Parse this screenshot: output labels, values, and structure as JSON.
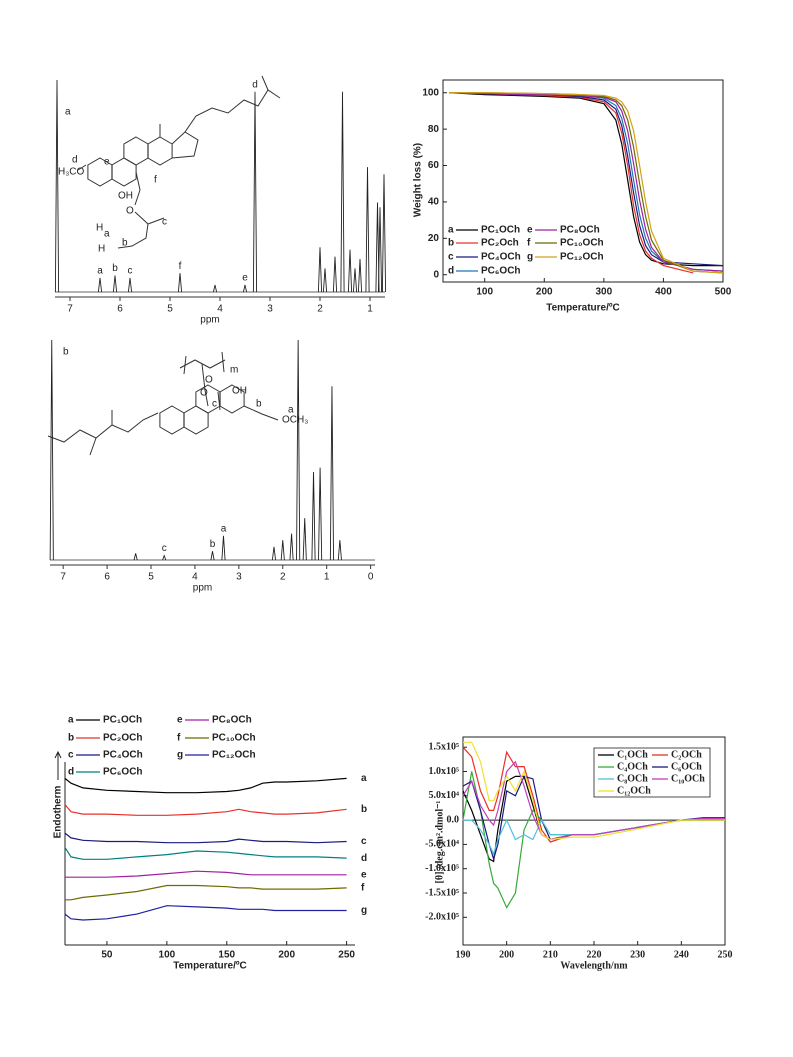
{
  "chart_data": [
    {
      "type": "spectrum",
      "panel_label": "a",
      "x_label": "ppm",
      "xlim": [
        7.3,
        0.7
      ],
      "xticks": [
        7,
        6,
        5,
        4,
        3,
        2,
        1
      ],
      "structure_labels": [
        "d",
        "H₃CO",
        "e",
        "OH",
        "O",
        "c",
        "H",
        "a",
        "H",
        "b",
        "f"
      ],
      "peaks": [
        {
          "x": 7.26,
          "height": 90
        },
        {
          "x": 6.4,
          "height": 6,
          "label": "a"
        },
        {
          "x": 6.1,
          "height": 7,
          "label": "b"
        },
        {
          "x": 5.8,
          "height": 6,
          "label": "c"
        },
        {
          "x": 4.8,
          "height": 8,
          "label": "f"
        },
        {
          "x": 4.1,
          "height": 3
        },
        {
          "x": 3.5,
          "height": 3,
          "label": "e"
        },
        {
          "x": 3.3,
          "height": 85,
          "label": "d"
        },
        {
          "x": 2.0,
          "height": 19
        },
        {
          "x": 1.9,
          "height": 10
        },
        {
          "x": 1.7,
          "height": 15
        },
        {
          "x": 1.55,
          "height": 85
        },
        {
          "x": 1.4,
          "height": 18
        },
        {
          "x": 1.3,
          "height": 10
        },
        {
          "x": 1.2,
          "height": 14
        },
        {
          "x": 1.05,
          "height": 53
        },
        {
          "x": 0.85,
          "height": 38
        },
        {
          "x": 0.8,
          "height": 36
        },
        {
          "x": 0.72,
          "height": 50
        }
      ]
    },
    {
      "type": "spectrum",
      "panel_label": "b",
      "x_label": "ppm",
      "xlim": [
        7.3,
        -0.1
      ],
      "xticks": [
        7,
        6,
        5,
        4,
        3,
        2,
        1,
        0
      ],
      "structure_labels": [
        "m",
        "O",
        "O",
        "OH",
        "c",
        "b",
        "OCH₃",
        "a"
      ],
      "peaks": [
        {
          "x": 7.26,
          "height": 100
        },
        {
          "x": 5.35,
          "height": 3
        },
        {
          "x": 4.7,
          "height": 2,
          "label": "c"
        },
        {
          "x": 3.6,
          "height": 4,
          "label": "b"
        },
        {
          "x": 3.35,
          "height": 11,
          "label": "a"
        },
        {
          "x": 2.2,
          "height": 6
        },
        {
          "x": 2.0,
          "height": 9
        },
        {
          "x": 1.8,
          "height": 12
        },
        {
          "x": 1.65,
          "height": 100
        },
        {
          "x": 1.5,
          "height": 19
        },
        {
          "x": 1.3,
          "height": 40
        },
        {
          "x": 1.15,
          "height": 42
        },
        {
          "x": 0.88,
          "height": 79
        },
        {
          "x": 0.7,
          "height": 9
        }
      ]
    },
    {
      "type": "line",
      "x_label": "Temperature/ºC",
      "y_label": "Weight loss (%)",
      "xlim": [
        30,
        500
      ],
      "ylim": [
        -4,
        107
      ],
      "xticks": [
        100,
        200,
        300,
        400,
        500
      ],
      "yticks": [
        0,
        20,
        40,
        60,
        80,
        100
      ],
      "x": [
        40,
        100,
        200,
        260,
        300,
        320,
        330,
        340,
        350,
        360,
        370,
        380,
        400,
        450,
        500
      ],
      "series": [
        {
          "label": "a",
          "name": "PC₁OCh",
          "color": "#000000",
          "values": [
            100,
            99,
            98,
            97,
            94,
            85,
            72,
            52,
            32,
            18,
            11,
            8,
            6,
            5,
            5
          ]
        },
        {
          "label": "b",
          "name": "PC₂Och",
          "color": "#e8302a",
          "values": [
            100,
            99.5,
            98.5,
            97.5,
            95,
            89,
            78,
            60,
            38,
            22,
            13,
            9,
            5,
            1,
            null
          ]
        },
        {
          "label": "c",
          "name": "PC₄OCh",
          "color": "#1a1a80",
          "values": [
            100,
            99.5,
            99,
            98,
            96,
            91,
            82,
            65,
            45,
            27,
            16,
            11,
            7,
            6,
            5
          ]
        },
        {
          "label": "d",
          "name": "PC₆OCh",
          "color": "#1f78b4",
          "values": [
            100,
            99.5,
            99,
            98.5,
            97,
            93,
            86,
            72,
            52,
            33,
            20,
            13,
            7,
            3,
            2
          ]
        },
        {
          "label": "e",
          "name": "PC₈OCh",
          "color": "#a020a0",
          "values": [
            100,
            99.5,
            99,
            98.5,
            97.5,
            95,
            90,
            79,
            61,
            41,
            25,
            15,
            7,
            3,
            2
          ]
        },
        {
          "label": "f",
          "name": "PC₁₀OCh",
          "color": "#6b6b00",
          "values": [
            100,
            100,
            99.5,
            99,
            98,
            96,
            93,
            85,
            70,
            50,
            32,
            19,
            8,
            2,
            1
          ]
        },
        {
          "label": "g",
          "name": "PC₁₂OCh",
          "color": "#d4a017",
          "values": [
            100,
            100,
            99.5,
            99,
            98.5,
            97,
            95,
            90,
            79,
            60,
            40,
            24,
            9,
            2,
            1
          ]
        }
      ]
    },
    {
      "type": "line",
      "x_label": "Temperature/ºC",
      "y_label": "Endotherm",
      "xlim": [
        15,
        257
      ],
      "ylim": [
        0,
        100
      ],
      "xticks": [
        50,
        100,
        150,
        200,
        250
      ],
      "x": [
        15,
        20,
        30,
        50,
        75,
        100,
        125,
        150,
        160,
        170,
        180,
        190,
        200,
        225,
        250
      ],
      "series": [
        {
          "label": "a",
          "name": "PC₁OCh",
          "color": "#000000",
          "values": [
            70,
            68,
            66,
            65,
            64.5,
            64,
            64,
            64.5,
            65,
            66,
            68,
            68.5,
            68.5,
            69,
            70
          ]
        },
        {
          "label": "b",
          "name": "PC₂OCh",
          "color": "#e8302a",
          "values": [
            59,
            56,
            55,
            55,
            54.5,
            54.5,
            55,
            56,
            57,
            56,
            55.5,
            55,
            55,
            55.5,
            57
          ]
        },
        {
          "label": "c",
          "name": "PC₄OCh",
          "color": "#1a1a80",
          "values": [
            47,
            45,
            44,
            43.5,
            43.5,
            43,
            43,
            43.5,
            44.5,
            44,
            43.5,
            43.5,
            43.5,
            43,
            43.5
          ]
        },
        {
          "label": "d",
          "name": "PC₆OCh",
          "color": "#008080",
          "values": [
            41,
            37,
            36,
            36,
            37,
            38,
            39.5,
            39,
            38.5,
            38,
            37.5,
            37,
            37,
            37,
            36.5
          ]
        },
        {
          "label": "e",
          "name": "PC₈OCh",
          "color": "#a020a0",
          "values": [
            28.5,
            28.5,
            28.5,
            28.5,
            29,
            30,
            31,
            30.5,
            30,
            29.5,
            29.5,
            29.5,
            29.5,
            29.5,
            29.5
          ]
        },
        {
          "label": "f",
          "name": "PC₁₀OCh",
          "color": "#6b6b00",
          "values": [
            19,
            19,
            20,
            21,
            22.5,
            25,
            25,
            24.5,
            24,
            24,
            23.5,
            23.5,
            23.5,
            23.5,
            24
          ]
        },
        {
          "label": "g",
          "name": "PC₁₂OCh",
          "color": "#2020a0",
          "values": [
            13,
            11,
            10.5,
            11,
            13,
            16.5,
            16,
            15.5,
            15,
            15,
            15,
            14.5,
            14.5,
            14.5,
            14.5
          ]
        }
      ]
    },
    {
      "type": "line",
      "x_label": "Wavelength/nm",
      "y_label": "[θ] /deg.cm².dmol⁻¹",
      "xlim": [
        190,
        250
      ],
      "ylim": [
        -257000,
        171000
      ],
      "xticks": [
        190,
        200,
        210,
        220,
        230,
        240,
        250
      ],
      "yticks": [
        {
          "value": 150000,
          "label": "1.5x10⁵"
        },
        {
          "value": 100000,
          "label": "1.0x10⁵"
        },
        {
          "value": 50000,
          "label": "5.0x10⁴"
        },
        {
          "value": 0,
          "label": "0.0"
        },
        {
          "value": -50000,
          "label": "-5.0x10⁴"
        },
        {
          "value": -100000,
          "label": "-1.0x10⁵"
        },
        {
          "value": -150000,
          "label": "-1.5x10⁵"
        },
        {
          "value": -200000,
          "label": "-2.0x10⁵"
        }
      ],
      "zero_line": true,
      "x": [
        190,
        192,
        194,
        196,
        197,
        198,
        200,
        202,
        204,
        206,
        208,
        210,
        215,
        220,
        230,
        240,
        245,
        250
      ],
      "series": [
        {
          "name": "C₁OCh",
          "color": "#000000",
          "values": [
            60000,
            20000,
            -30000,
            -80000,
            -85000,
            -20000,
            80000,
            90000,
            90000,
            30000,
            -30000,
            -40000,
            -30000,
            -30000,
            -15000,
            0,
            0,
            0
          ]
        },
        {
          "name": "C₂OCh",
          "color": "#e8302a",
          "values": [
            150000,
            130000,
            60000,
            20000,
            20000,
            50000,
            140000,
            110000,
            110000,
            50000,
            -20000,
            -45000,
            -30000,
            -30000,
            -15000,
            0,
            2000,
            2000
          ]
        },
        {
          "name": "C₄OCh",
          "color": "#3aa83a",
          "values": [
            0,
            100000,
            20000,
            -90000,
            -130000,
            -140000,
            -180000,
            -150000,
            -20000,
            20000,
            0,
            -30000,
            -30000,
            -30000,
            -15000,
            0,
            0,
            0
          ]
        },
        {
          "name": "C₆OCh",
          "color": "#1a1a80",
          "values": [
            70000,
            80000,
            20000,
            -50000,
            -80000,
            -50000,
            60000,
            50000,
            90000,
            85000,
            0,
            -40000,
            -30000,
            -30000,
            -15000,
            0,
            5000,
            5000
          ]
        },
        {
          "name": "C₈OCh",
          "color": "#4fc3e0",
          "values": [
            0,
            0,
            -20000,
            -50000,
            -70000,
            -40000,
            0,
            -40000,
            -30000,
            -40000,
            0,
            -30000,
            -30000,
            -30000,
            -15000,
            0,
            0,
            0
          ]
        },
        {
          "name": "C₁₀OCh",
          "color": "#c040c0",
          "values": [
            50000,
            80000,
            30000,
            0,
            -10000,
            20000,
            100000,
            120000,
            70000,
            10000,
            -30000,
            -40000,
            -30000,
            -30000,
            -15000,
            0,
            3000,
            3000
          ]
        },
        {
          "name": "C₁₂OCh",
          "color": "#f0e030",
          "values": [
            160000,
            160000,
            120000,
            40000,
            40000,
            60000,
            90000,
            60000,
            100000,
            40000,
            -30000,
            -40000,
            -35000,
            -35000,
            -18000,
            0,
            0,
            0
          ]
        }
      ]
    }
  ]
}
